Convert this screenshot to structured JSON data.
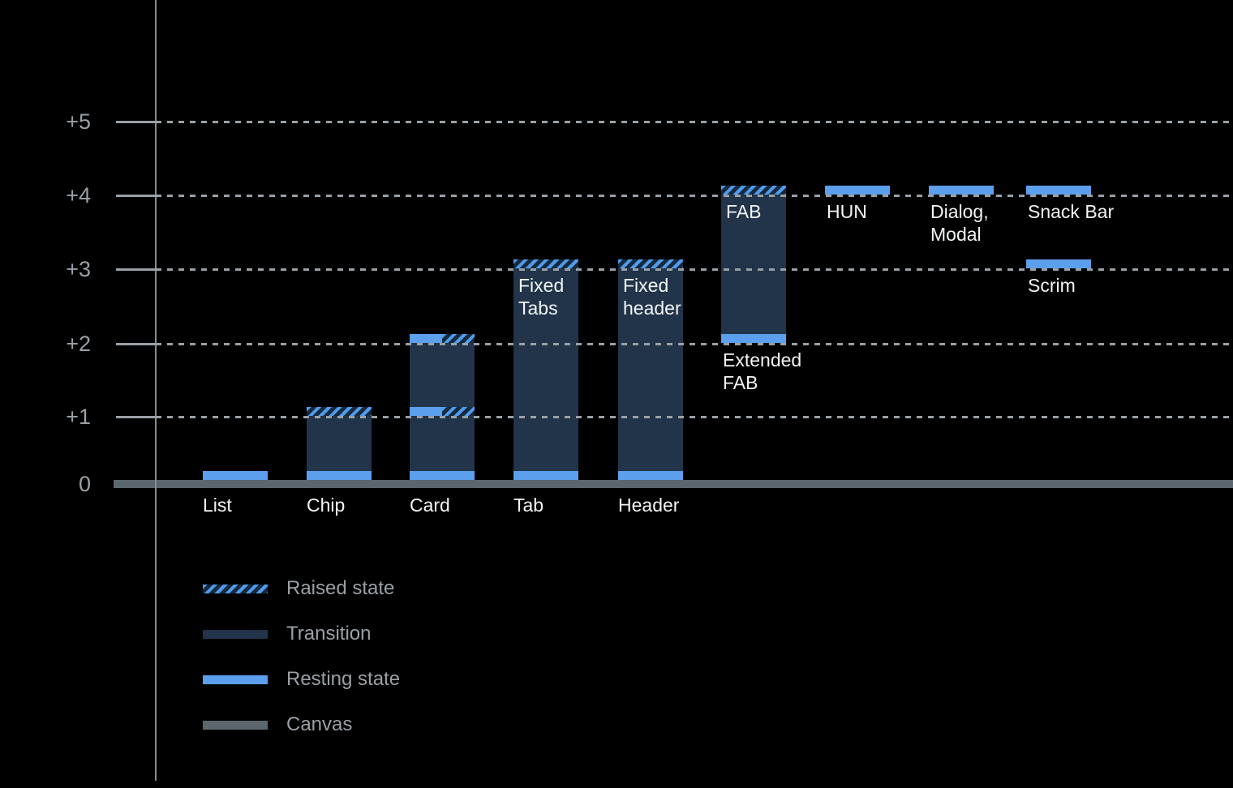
{
  "chart_data": {
    "type": "bar",
    "title": "",
    "subtitle": "",
    "grid": "dotted horizontal gridlines, dark background",
    "y_axis": {
      "levels": [
        5,
        4,
        3,
        2,
        1,
        0
      ],
      "tick_labels": [
        "+5",
        "+4",
        "+3",
        "+2",
        "+1",
        "0"
      ],
      "range": [
        0,
        5
      ]
    },
    "components": [
      {
        "name": "List",
        "column": 0,
        "axis_label": "List",
        "resting_levels": [
          0
        ]
      },
      {
        "name": "Chip",
        "column": 1,
        "axis_label": "Chip",
        "resting_levels": [
          0
        ],
        "raised_levels": [
          1
        ],
        "transition_span": [
          0,
          1
        ]
      },
      {
        "name": "Card",
        "column": 2,
        "axis_label": "Card",
        "resting_levels": [
          0
        ],
        "half_resting_half_raised_levels": [
          1,
          2
        ],
        "transition_span": [
          0,
          2
        ]
      },
      {
        "name": "Fixed Tabs",
        "column": 3,
        "axis_label": "Tab",
        "inner_label": "Fixed\nTabs",
        "resting_levels": [
          0
        ],
        "raised_levels": [
          3
        ],
        "transition_span": [
          0,
          3
        ]
      },
      {
        "name": "Fixed header",
        "column": 4,
        "axis_label": "Header",
        "inner_label": "Fixed\nheader",
        "resting_levels": [
          0
        ],
        "raised_levels": [
          3
        ],
        "transition_span": [
          0,
          3
        ]
      },
      {
        "name": "FAB",
        "column": 5,
        "inner_label": "FAB",
        "below_label": "Extended\nFAB",
        "below_label_level": 2,
        "resting_levels": [
          2
        ],
        "raised_levels": [
          4
        ],
        "transition_span": [
          2,
          4
        ]
      },
      {
        "name": "HUN",
        "column": 6,
        "below_label": "HUN",
        "below_label_level": 4,
        "resting_levels": [
          4
        ]
      },
      {
        "name": "Dialog, Modal",
        "column": 7,
        "below_label": "Dialog,\nModal",
        "below_label_level": 4,
        "resting_levels": [
          4
        ]
      },
      {
        "name": "Snack Bar",
        "column": 8,
        "below_label": "Snack Bar",
        "below_label_level": 4,
        "resting_levels": [
          4
        ]
      },
      {
        "name": "Scrim",
        "column": 8,
        "below_label": "Scrim",
        "below_label_level": 3,
        "resting_levels": [
          3
        ]
      }
    ],
    "legend": [
      {
        "label": "Raised state",
        "swatch": "raised"
      },
      {
        "label": "Transition",
        "swatch": "transition"
      },
      {
        "label": "Resting state",
        "swatch": "resting"
      },
      {
        "label": "Canvas",
        "swatch": "canvas"
      }
    ],
    "colors": {
      "background": "#000000",
      "resting_blue": "#5c9fec",
      "transition_navy": "#213449",
      "raised_stripe_blue": "#4f9bec",
      "raised_hatch_bg_navy": "#17293d",
      "canvas_gray": "#5c666f",
      "grid_gray": "#9aa0a6",
      "axis_line_gray": "#848b93",
      "axis_text_gray": "#9aa0a6",
      "component_text_white": "#f2f4f5",
      "legend_text_gray": "#9aa0a6"
    }
  }
}
